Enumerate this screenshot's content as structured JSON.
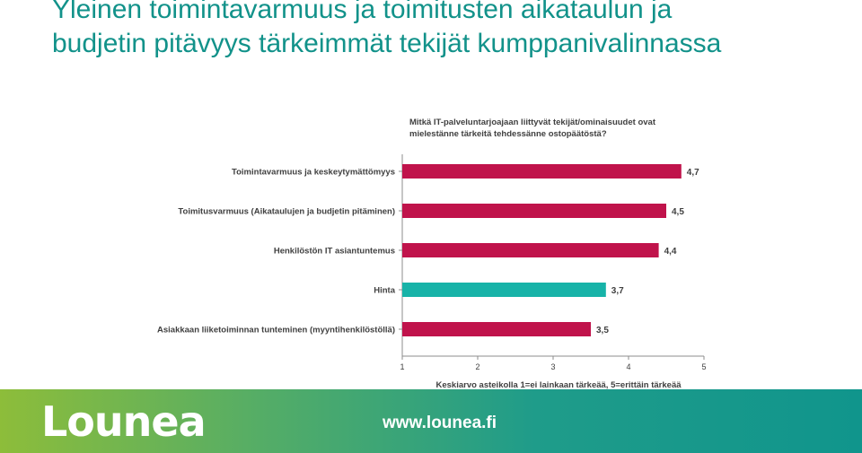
{
  "slide": {
    "title_line1": "Yleinen toimintavarmuus ja toimitusten aikataulun ja",
    "title_line2": "budjetin pitävyys tärkeimmät tekijät kumppanivalinnassa"
  },
  "footer": {
    "logo_text": "Lounea",
    "url": "www.lounea.fi"
  },
  "chart_data": {
    "type": "bar",
    "orientation": "horizontal",
    "title_line1": "Mitkä IT-palveluntarjoajaan liittyvät tekijät/ominaisuudet ovat",
    "title_line2": "mielestänne   tärkeitä tehdessänne ostopäätöstä?",
    "categories": [
      "Toimintavarmuus ja keskeytymättömyys",
      "Toimitusvarmuus (Aikataulujen ja budjetin pitäminen)",
      "Henkilöstön IT asiantuntemus",
      "Hinta",
      "Asiakkaan liiketoiminnan tunteminen (myyntihenkilöstöllä)"
    ],
    "values": [
      4.7,
      4.5,
      4.4,
      3.7,
      3.5
    ],
    "value_labels": [
      "4,7",
      "4,5",
      "4,4",
      "3,7",
      "3,5"
    ],
    "bar_colors": [
      "#c0134b",
      "#c0134b",
      "#c0134b",
      "#17b3a8",
      "#c0134b"
    ],
    "xlim": [
      1,
      5
    ],
    "xticks": [
      "1",
      "2",
      "3",
      "4",
      "5"
    ],
    "xlabel": "Keskiarvo asteikolla 1=ei lainkaan tärkeää, 5=erittäin tärkeää",
    "grid": false,
    "legend": "none"
  }
}
